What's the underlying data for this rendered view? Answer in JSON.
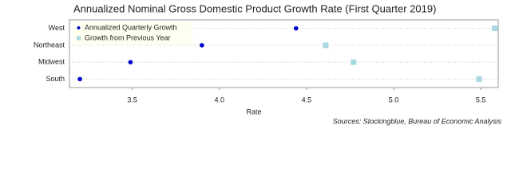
{
  "chart_data": {
    "type": "dot",
    "title": "Annualized Nominal Gross Domestic Product Growth Rate (First Quarter 2019)",
    "categories": [
      "West",
      "Northeast",
      "Midwest",
      "South"
    ],
    "series": [
      {
        "name": "Annualized Quarterly Growth",
        "color": "#0000cc",
        "marker": "circle",
        "values": [
          4.44,
          3.9,
          3.49,
          3.2
        ]
      },
      {
        "name": "Growth from Previous Year",
        "color": "#a8d8e0",
        "marker": "square",
        "values": [
          5.58,
          4.61,
          4.77,
          5.49
        ]
      }
    ],
    "xlabel": "Rate",
    "xlim": [
      3.14,
      5.6
    ],
    "xticks": [
      3.5,
      {
        "value": 4,
        "label": "4.0"
      },
      4.5,
      {
        "value": 5,
        "label": "5.0"
      },
      5.5
    ],
    "grid": true,
    "legend": "upper left",
    "source": "Sources: Stockingblue, Bureau of Economic Analysis"
  }
}
